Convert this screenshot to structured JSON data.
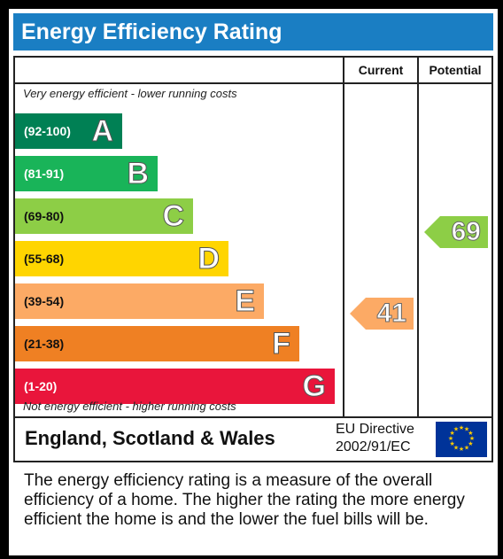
{
  "title": "Energy Efficiency Rating",
  "columns": {
    "current": "Current",
    "potential": "Potential"
  },
  "captions": {
    "top": "Very energy efficient - lower running costs",
    "bottom": "Not energy efficient - higher running costs"
  },
  "bands": [
    {
      "range": "(92-100)",
      "letter": "A",
      "color": "#008054"
    },
    {
      "range": "(81-91)",
      "letter": "B",
      "color": "#19b459"
    },
    {
      "range": "(69-80)",
      "letter": "C",
      "color": "#8dce46"
    },
    {
      "range": "(55-68)",
      "letter": "D",
      "color": "#ffd500"
    },
    {
      "range": "(39-54)",
      "letter": "E",
      "color": "#fcaa65"
    },
    {
      "range": "(21-38)",
      "letter": "F",
      "color": "#ef8023"
    },
    {
      "range": "(1-20)",
      "letter": "G",
      "color": "#e9153b"
    }
  ],
  "ratings": {
    "current": {
      "value": "41",
      "color": "#fcaa65"
    },
    "potential": {
      "value": "69",
      "color": "#8dce46"
    }
  },
  "footer": {
    "region": "England, Scotland & Wales",
    "directive_line1": "EU Directive",
    "directive_line2": "2002/91/EC"
  },
  "description": "The energy efficiency rating is a measure of the overall efficiency of a home. The higher the rating the more energy efficient the home is and the lower the fuel bills will be.",
  "icons": {
    "flag": "eu-flag-icon"
  }
}
